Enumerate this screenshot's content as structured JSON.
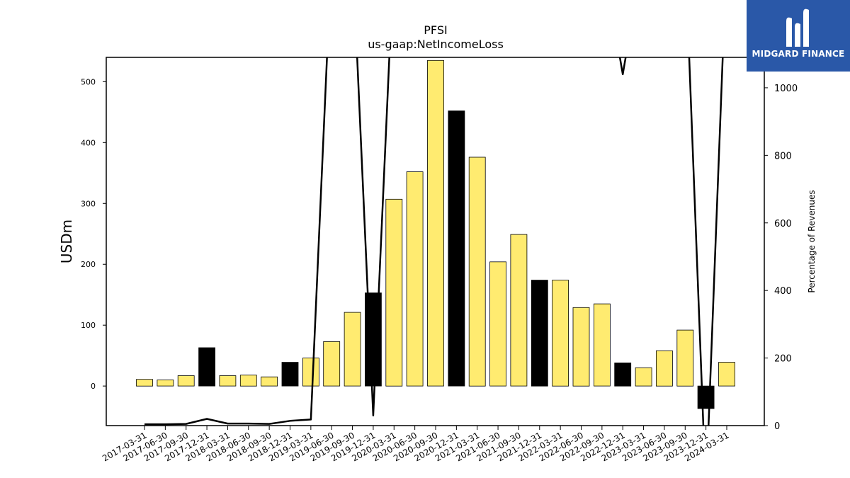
{
  "brand": {
    "name": "MIDGARD FINANCE",
    "color": "#2a58a8"
  },
  "chart_data": {
    "type": "bar",
    "title": "PFSI",
    "subtitle": "us-gaap:NetIncomeLoss",
    "ylabel": "USDm",
    "ylabel_right": "Percentage of Revenues",
    "ylim": [
      -65,
      540
    ],
    "ylim_right": [
      0,
      1090
    ],
    "yticks": [
      0,
      100,
      200,
      300,
      400,
      500
    ],
    "yticks_right": [
      0,
      200,
      400,
      600,
      800,
      1000
    ],
    "colors": {
      "annual": "#000000",
      "quarter": "#ffeb70",
      "line": "#000000"
    },
    "categories": [
      "2017-03-31",
      "2017-06-30",
      "2017-09-30",
      "2017-12-31",
      "2018-03-31",
      "2018-06-30",
      "2018-09-30",
      "2018-12-31",
      "2019-03-31",
      "2019-06-30",
      "2019-09-30",
      "2019-12-31",
      "2020-03-31",
      "2020-06-30",
      "2020-09-30",
      "2020-12-31",
      "2021-03-31",
      "2021-06-30",
      "2021-09-30",
      "2021-12-31",
      "2022-03-31",
      "2022-06-30",
      "2022-09-30",
      "2022-12-31",
      "2023-03-31",
      "2023-06-30",
      "2023-09-30",
      "2023-12-31",
      "2024-03-31"
    ],
    "values": [
      11,
      10,
      17,
      63,
      17,
      18,
      15,
      39,
      46,
      73,
      121,
      153,
      307,
      352,
      535,
      452,
      376,
      204,
      249,
      174,
      174,
      129,
      135,
      38,
      30,
      58,
      92,
      -37,
      39
    ],
    "year_end": [
      false,
      false,
      false,
      true,
      false,
      false,
      false,
      true,
      false,
      false,
      false,
      true,
      false,
      false,
      false,
      true,
      false,
      false,
      false,
      true,
      false,
      false,
      false,
      true,
      false,
      false,
      false,
      true,
      false
    ],
    "line_series": {
      "name": "Percentage of Revenues",
      "values": [
        4,
        4,
        5,
        20,
        6,
        6,
        5,
        14,
        18,
        1400,
        1400,
        30,
        1400,
        1400,
        1400,
        1400,
        1400,
        1400,
        1400,
        1400,
        1400,
        1400,
        1400,
        1040,
        1400,
        1400,
        1400,
        -200,
        1400
      ]
    }
  }
}
